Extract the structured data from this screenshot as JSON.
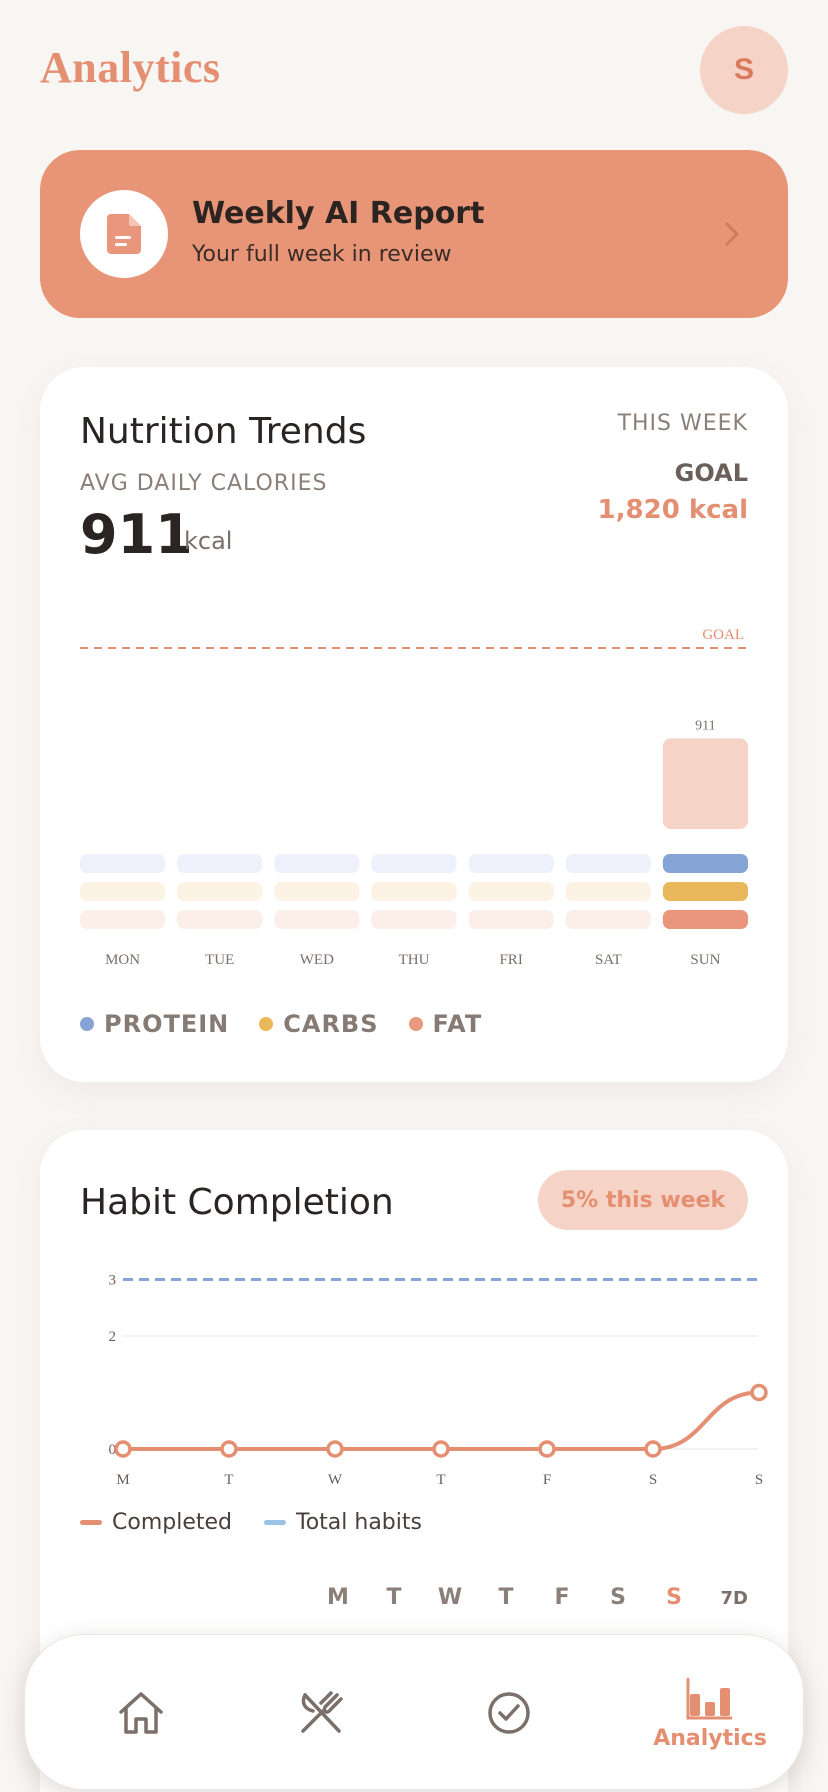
{
  "header": {
    "title": "Analytics",
    "avatar_initial": "S"
  },
  "report": {
    "title": "Weekly AI Report",
    "subtitle": "Your full week in review",
    "icon": "document-icon"
  },
  "nutrition": {
    "title": "Nutrition Trends",
    "avg_label": "AVG DAILY CALORIES",
    "avg_value": "911",
    "avg_unit": "kcal",
    "period": "THIS WEEK",
    "goal_label": "GOAL",
    "goal_value": "1,820 kcal",
    "legend": [
      {
        "label": "PROTEIN",
        "color": "#86a3d6"
      },
      {
        "label": "CARBS",
        "color": "#e9b85a"
      },
      {
        "label": "FAT",
        "color": "#e9967d"
      }
    ]
  },
  "habit": {
    "title": "Habit Completion",
    "badge": "5% this week",
    "legend_completed": "Completed",
    "legend_total": "Total habits",
    "day_picker": [
      "M",
      "T",
      "W",
      "T",
      "F",
      "S",
      "S"
    ],
    "active_day_index": 6,
    "range": "7D"
  },
  "nav": {
    "items": [
      {
        "name": "home",
        "icon": "home-icon",
        "label": ""
      },
      {
        "name": "meals",
        "icon": "fork-knife-icon",
        "label": ""
      },
      {
        "name": "habits",
        "icon": "check-circle-icon",
        "label": ""
      },
      {
        "name": "analytics",
        "icon": "bar-chart-icon",
        "label": "Analytics"
      }
    ]
  },
  "chart_data": [
    {
      "type": "bar",
      "categories": [
        "MON",
        "TUE",
        "WED",
        "THU",
        "FRI",
        "SAT",
        "SUN"
      ],
      "values": [
        0,
        0,
        0,
        0,
        0,
        0,
        911
      ],
      "goal": 1820,
      "goal_label": "GOAL",
      "value_labels": [
        "",
        "",
        "",
        "",
        "",
        "",
        "911"
      ],
      "macros_logged": [
        false,
        false,
        false,
        false,
        false,
        false,
        true
      ],
      "colors": {
        "calories": "#f5d3c6",
        "protein": "#86a3d6",
        "carbs": "#e9b85a",
        "fat": "#e9967d",
        "goal_line": "#e58f72"
      }
    },
    {
      "type": "line",
      "categories": [
        "M",
        "T",
        "W",
        "T",
        "F",
        "S",
        "S"
      ],
      "yticks": [
        0,
        2,
        3
      ],
      "ylim": [
        0,
        3
      ],
      "series": [
        {
          "name": "Completed",
          "values": [
            0,
            0,
            0,
            0,
            0,
            0,
            1
          ],
          "color": "#e58f72"
        },
        {
          "name": "Total habits",
          "values": [
            3,
            3,
            3,
            3,
            3,
            3,
            3
          ],
          "color": "#86a3d6"
        }
      ]
    }
  ]
}
